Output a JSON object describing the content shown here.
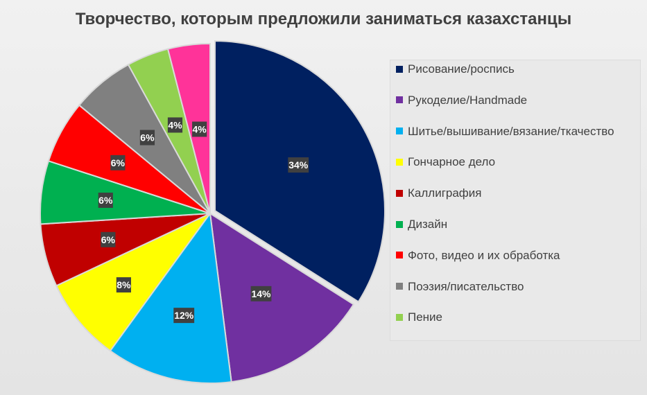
{
  "chart_data": {
    "type": "pie",
    "title": "Творчество, которым предложили заниматься казахстанцы",
    "start_angle_deg": 0,
    "exploded_slice_index": 0,
    "legend_position": "right",
    "slices": [
      {
        "name": "Рисование/роспись",
        "value": 34,
        "label": "34%",
        "color": "#002060"
      },
      {
        "name": "Рукоделие/Handmade",
        "value": 14,
        "label": "14%",
        "color": "#7030A0"
      },
      {
        "name": "Шитье/вышивание/вязание/ткачество",
        "value": 12,
        "label": "12%",
        "color": "#00B0F0"
      },
      {
        "name": "Гончарное дело",
        "value": 8,
        "label": "8%",
        "color": "#FFFF00"
      },
      {
        "name": "Каллиграфия",
        "value": 6,
        "label": "6%",
        "color": "#C00000"
      },
      {
        "name": "Дизайн",
        "value": 6,
        "label": "6%",
        "color": "#00B050"
      },
      {
        "name": "Фото, видео и их обработка",
        "value": 6,
        "label": "6%",
        "color": "#FF0000"
      },
      {
        "name": "Поэзия/писательство",
        "value": 6,
        "label": "6%",
        "color": "#808080"
      },
      {
        "name": "Пение",
        "value": 4,
        "label": "4%",
        "color": "#92D050"
      },
      {
        "name": "",
        "value": 4,
        "label": "4%",
        "color": "#FF3399"
      }
    ]
  }
}
